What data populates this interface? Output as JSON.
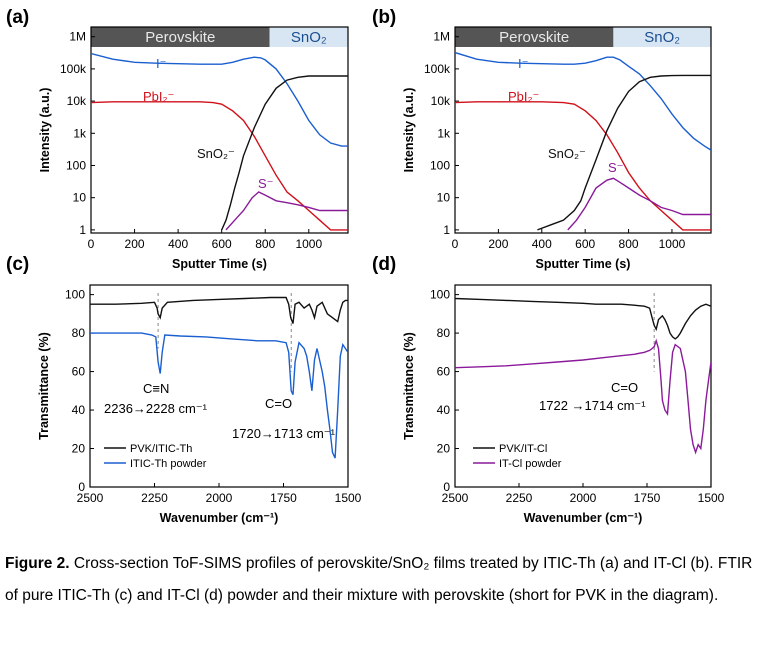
{
  "chart_data": [
    {
      "panel": "(a)",
      "type": "line",
      "xlabel": "Sputter Time (s)",
      "ylabel": "Intensity (a.u.)",
      "xlim": [
        0,
        1180
      ],
      "ylim": [
        0.8,
        2000000
      ],
      "y_scale": "log",
      "x_ticks": [
        0,
        200,
        400,
        600,
        800,
        1000
      ],
      "y_ticks": [
        {
          "value": 1,
          "label": "1"
        },
        {
          "value": 10,
          "label": "10"
        },
        {
          "value": 100,
          "label": "100"
        },
        {
          "value": 1000,
          "label": "1k"
        },
        {
          "value": 10000,
          "label": "10k"
        },
        {
          "value": 100000,
          "label": "100k"
        },
        {
          "value": 1000000,
          "label": "1M"
        }
      ],
      "regions": [
        {
          "label": "Perovskite",
          "x": [
            0,
            820
          ],
          "color": "#555555",
          "text_color": "#e8e8e8"
        },
        {
          "label": "SnO₂",
          "x": [
            820,
            1180
          ],
          "color": "#d8e6f4",
          "text_color": "#1a4f8f"
        }
      ],
      "series": [
        {
          "name": "I⁻",
          "color": "#1a5fd0",
          "x": [
            0,
            100,
            200,
            300,
            400,
            500,
            600,
            650,
            700,
            750,
            780,
            800,
            850,
            900,
            950,
            1000,
            1050,
            1100,
            1150,
            1180
          ],
          "y": [
            300000,
            200000,
            160000,
            150000,
            145000,
            140000,
            140000,
            160000,
            200000,
            230000,
            220000,
            190000,
            100000,
            35000,
            10000,
            2500,
            900,
            500,
            400,
            400
          ]
        },
        {
          "name": "PbI₂⁻",
          "color": "#d0101a",
          "x": [
            0,
            100,
            200,
            300,
            400,
            500,
            560,
            600,
            650,
            700,
            750,
            800,
            850,
            900,
            950,
            1000,
            1050,
            1100,
            1180
          ],
          "y": [
            9000,
            9500,
            9500,
            9500,
            9500,
            9500,
            9000,
            8000,
            5000,
            2500,
            800,
            200,
            50,
            15,
            8,
            4,
            2,
            1,
            1
          ]
        },
        {
          "name": "SnO₂⁻",
          "color": "#111111",
          "x": [
            600,
            620,
            640,
            660,
            680,
            700,
            750,
            800,
            850,
            900,
            950,
            1000,
            1050,
            1100,
            1180
          ],
          "y": [
            1,
            2,
            6,
            20,
            60,
            200,
            1500,
            8000,
            25000,
            45000,
            55000,
            60000,
            60000,
            60000,
            60000
          ]
        },
        {
          "name": "S⁻",
          "color": "#8a1a9a",
          "x": [
            620,
            660,
            700,
            740,
            770,
            800,
            850,
            900,
            950,
            1000,
            1050,
            1100,
            1150,
            1180
          ],
          "y": [
            1,
            2,
            4,
            10,
            15,
            12,
            8,
            7,
            6,
            5,
            4,
            4,
            4,
            4
          ]
        }
      ],
      "annotations": [
        "I⁻",
        "PbI₂⁻",
        "SnO₂⁻",
        "S⁻"
      ]
    },
    {
      "panel": "(b)",
      "type": "line",
      "xlabel": "Sputter Time (s)",
      "ylabel": "Intensity (a.u.)",
      "xlim": [
        0,
        1180
      ],
      "ylim": [
        0.8,
        2000000
      ],
      "y_scale": "log",
      "x_ticks": [
        0,
        200,
        400,
        600,
        800,
        1000
      ],
      "y_ticks": [
        {
          "value": 1,
          "label": "1"
        },
        {
          "value": 10,
          "label": "10"
        },
        {
          "value": 100,
          "label": "100"
        },
        {
          "value": 1000,
          "label": "1k"
        },
        {
          "value": 10000,
          "label": "10k"
        },
        {
          "value": 100000,
          "label": "100k"
        },
        {
          "value": 1000000,
          "label": "1M"
        }
      ],
      "regions": [
        {
          "label": "Perovskite",
          "x": [
            0,
            730
          ],
          "color": "#555555",
          "text_color": "#e8e8e8"
        },
        {
          "label": "SnO₂",
          "x": [
            730,
            1180
          ],
          "color": "#d8e6f4",
          "text_color": "#1a4f8f"
        }
      ],
      "series": [
        {
          "name": "I⁻",
          "color": "#1a5fd0",
          "x": [
            0,
            100,
            200,
            300,
            400,
            500,
            550,
            600,
            650,
            700,
            730,
            760,
            800,
            850,
            900,
            950,
            1000,
            1050,
            1100,
            1150,
            1180
          ],
          "y": [
            320000,
            200000,
            160000,
            150000,
            145000,
            140000,
            140000,
            150000,
            180000,
            230000,
            230000,
            190000,
            120000,
            70000,
            30000,
            12000,
            4000,
            1500,
            700,
            400,
            300
          ]
        },
        {
          "name": "PbI₂⁻",
          "color": "#d0101a",
          "x": [
            0,
            100,
            200,
            300,
            400,
            500,
            550,
            600,
            650,
            700,
            750,
            800,
            850,
            900,
            950,
            1000,
            1050,
            1100,
            1180
          ],
          "y": [
            9000,
            9500,
            9500,
            9500,
            9500,
            9000,
            8000,
            5000,
            2500,
            900,
            250,
            60,
            20,
            8,
            4,
            2,
            1,
            1,
            1
          ]
        },
        {
          "name": "SnO₂⁻",
          "color": "#111111",
          "x": [
            380,
            450,
            500,
            550,
            580,
            600,
            650,
            700,
            750,
            800,
            850,
            900,
            950,
            1000,
            1050,
            1100,
            1180
          ],
          "y": [
            1,
            1.5,
            2,
            4,
            8,
            20,
            150,
            1200,
            6000,
            20000,
            40000,
            55000,
            60000,
            62000,
            63000,
            63000,
            63000
          ]
        },
        {
          "name": "S⁻",
          "color": "#8a1a9a",
          "x": [
            520,
            560,
            600,
            650,
            700,
            730,
            760,
            800,
            850,
            900,
            950,
            1000,
            1050,
            1100,
            1180
          ],
          "y": [
            1,
            2,
            5,
            20,
            35,
            40,
            30,
            20,
            12,
            8,
            5,
            4,
            3,
            3,
            3
          ]
        }
      ],
      "annotations": [
        "I⁻",
        "PbI₂⁻",
        "SnO₂⁻",
        "S⁻"
      ]
    },
    {
      "panel": "(c)",
      "type": "line",
      "xlabel": "Wavenumber (cm⁻¹)",
      "ylabel": "Transmittance (%)",
      "xlim": [
        2500,
        1500
      ],
      "ylim": [
        0,
        105
      ],
      "x_ticks": [
        2500,
        2250,
        2000,
        1750,
        1500
      ],
      "y_ticks": [
        0,
        20,
        40,
        60,
        80,
        100
      ],
      "legend": "bottom-left",
      "reference_lines": [
        2236,
        1720
      ],
      "series": [
        {
          "name": "PVK/ITIC-Th",
          "color": "#111111",
          "x": [
            2500,
            2400,
            2300,
            2250,
            2240,
            2236,
            2228,
            2220,
            2200,
            2100,
            2000,
            1900,
            1800,
            1740,
            1730,
            1722,
            1713,
            1705,
            1690,
            1670,
            1650,
            1640,
            1630,
            1620,
            1600,
            1580,
            1560,
            1540,
            1530,
            1520,
            1510,
            1500
          ],
          "y": [
            95,
            95,
            95.5,
            96,
            93,
            90,
            88,
            93,
            96,
            97,
            97.5,
            98,
            98.5,
            98.5,
            95,
            88,
            85,
            95,
            96,
            93,
            95,
            92,
            88,
            94,
            96,
            90,
            88,
            86,
            92,
            96,
            97,
            97
          ]
        },
        {
          "name": "ITIC-Th powder",
          "color": "#1a5fd0",
          "x": [
            2500,
            2400,
            2300,
            2260,
            2245,
            2236,
            2228,
            2220,
            2210,
            2150,
            2050,
            1950,
            1850,
            1780,
            1740,
            1730,
            1720,
            1713,
            1705,
            1690,
            1670,
            1660,
            1650,
            1640,
            1630,
            1620,
            1600,
            1590,
            1580,
            1570,
            1560,
            1550,
            1540,
            1530,
            1520,
            1510,
            1500
          ],
          "y": [
            80,
            80,
            80,
            79,
            78,
            65,
            59,
            70,
            79,
            78.5,
            78,
            77,
            76,
            76,
            75,
            70,
            50,
            48,
            65,
            75,
            72,
            68,
            60,
            50,
            66,
            72,
            60,
            52,
            40,
            30,
            18,
            15,
            40,
            68,
            74,
            72,
            70
          ]
        }
      ],
      "annotations": [
        "C≡N",
        "2236→2228  cm⁻¹",
        "C=O",
        "1720→1713  cm⁻¹"
      ]
    },
    {
      "panel": "(d)",
      "type": "line",
      "xlabel": "Wavenumber (cm⁻¹)",
      "ylabel": "Transmittance (%)",
      "xlim": [
        2500,
        1500
      ],
      "ylim": [
        0,
        105
      ],
      "x_ticks": [
        2500,
        2250,
        2000,
        1750,
        1500
      ],
      "y_ticks": [
        0,
        20,
        40,
        60,
        80,
        100
      ],
      "legend": "bottom-left",
      "reference_lines": [
        1722
      ],
      "series": [
        {
          "name": "PVK/IT-Cl",
          "color": "#111111",
          "x": [
            2500,
            2400,
            2300,
            2200,
            2100,
            2000,
            1950,
            1900,
            1850,
            1800,
            1760,
            1740,
            1730,
            1722,
            1714,
            1705,
            1690,
            1680,
            1670,
            1660,
            1650,
            1640,
            1630,
            1620,
            1600,
            1580,
            1560,
            1540,
            1520,
            1500
          ],
          "y": [
            98,
            97.5,
            97,
            96.5,
            96,
            95.5,
            95,
            95,
            95,
            94.5,
            94,
            93,
            88,
            84,
            82,
            87,
            89,
            87,
            84,
            80,
            78,
            77,
            78,
            80,
            85,
            89,
            92,
            94,
            95,
            94
          ]
        },
        {
          "name": "IT-Cl powder",
          "color": "#8a1a9a",
          "x": [
            2500,
            2400,
            2300,
            2200,
            2100,
            2000,
            1900,
            1800,
            1760,
            1740,
            1730,
            1722,
            1714,
            1705,
            1695,
            1690,
            1680,
            1670,
            1660,
            1650,
            1640,
            1620,
            1600,
            1590,
            1580,
            1570,
            1560,
            1550,
            1540,
            1530,
            1520,
            1510,
            1500
          ],
          "y": [
            62,
            62.5,
            63,
            64,
            65,
            66,
            67.5,
            69,
            70,
            71,
            72,
            73,
            76,
            72,
            55,
            45,
            40,
            38,
            55,
            70,
            74,
            72,
            60,
            45,
            30,
            22,
            18,
            22,
            20,
            30,
            45,
            55,
            65
          ]
        }
      ],
      "annotations": [
        "C=O",
        "1722 →1714  cm⁻¹"
      ]
    }
  ],
  "panel_labels": [
    "(a)",
    "(b)",
    "(c)",
    "(d)"
  ],
  "caption": {
    "label": "Figure 2.",
    "text": " Cross-section ToF-SIMS profiles of perovskite/SnO₂ films treated by ITIC-Th (a) and IT-Cl (b). FTIR of pure ITIC-Th (c) and IT-Cl (d) powder and their mixture with perovskite (short for PVK in the diagram)."
  }
}
